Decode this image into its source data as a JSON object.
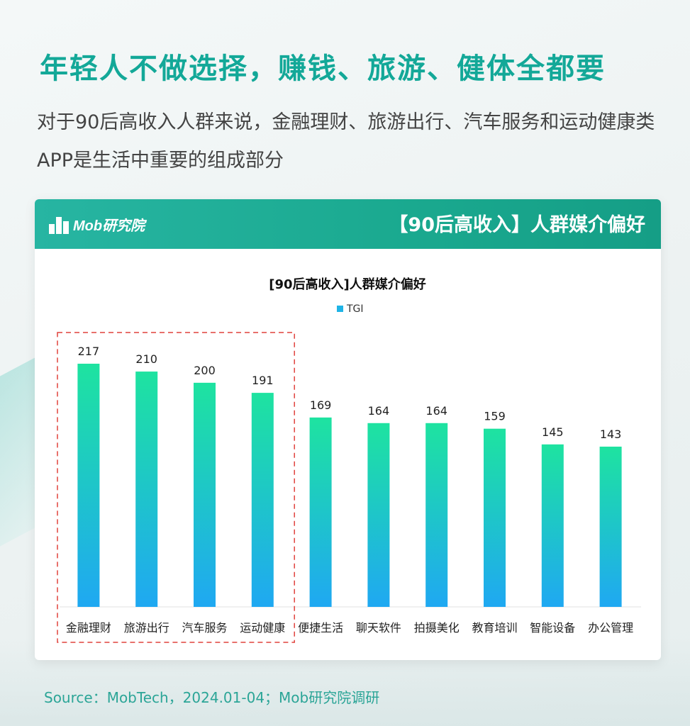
{
  "headline": "年轻人不做选择，赚钱、旅游、健体全都要",
  "subtitle": "对于90后高收入人群来说，金融理财、旅游出行、汽车服务和运动健康类APP是生活中重要的组成部分",
  "card": {
    "logo_text": "Mob研究院",
    "title": "【90后高收入】人群媒介偏好"
  },
  "chart_data": {
    "type": "bar",
    "title": "[90后高收入]人群媒介偏好",
    "categories": [
      "金融理财",
      "旅游出行",
      "汽车服务",
      "运动健康",
      "便捷生活",
      "聊天软件",
      "拍摄美化",
      "教育培训",
      "智能设备",
      "办公管理"
    ],
    "series": [
      {
        "name": "TGI",
        "values": [
          217,
          210,
          200,
          191,
          169,
          164,
          164,
          159,
          145,
          143
        ]
      }
    ],
    "ylim": [
      0,
      217
    ],
    "legend": "top-center",
    "grid": false,
    "highlighted_categories": [
      "金融理财",
      "旅游出行",
      "汽车服务",
      "运动健康"
    ],
    "colors": {
      "bar_top": "#1ee3a0",
      "bar_bottom": "#1fa8f2",
      "highlight_box": "#e0423c"
    }
  },
  "source": "Source：MobTech，2024.01-04；Mob研究院调研"
}
